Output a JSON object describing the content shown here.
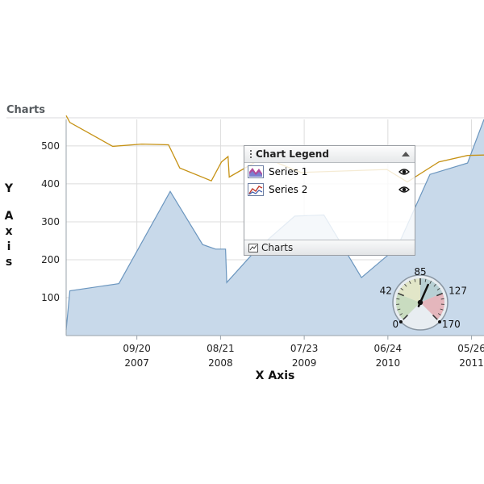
{
  "panel": {
    "title": "Charts"
  },
  "chart_data": {
    "type": "area",
    "xlabel": "X Axis",
    "ylabel": "Y Axis",
    "ylim": [
      0,
      570
    ],
    "yticks": [
      100,
      200,
      300,
      400,
      500
    ],
    "xlim": [
      "2006-12-10",
      "2011-07-15"
    ],
    "xticks": [
      {
        "date": "2007-09-20",
        "top": "09/20",
        "bottom": "2007"
      },
      {
        "date": "2008-08-21",
        "top": "08/21",
        "bottom": "2008"
      },
      {
        "date": "2009-07-23",
        "top": "07/23",
        "bottom": "2009"
      },
      {
        "date": "2010-06-24",
        "top": "06/24",
        "bottom": "2010"
      },
      {
        "date": "2011-05-26",
        "top": "05/26",
        "bottom": "2011"
      }
    ],
    "grid": true,
    "series": [
      {
        "name": "Series 1",
        "type": "area",
        "color": "#6b96bf",
        "fill": "#c8d9ea",
        "points": [
          [
            "2006-12-10",
            15
          ],
          [
            "2006-12-25",
            118
          ],
          [
            "2007-07-10",
            137
          ],
          [
            "2008-02-01",
            380
          ],
          [
            "2008-06-10",
            240
          ],
          [
            "2008-08-01",
            228
          ],
          [
            "2008-09-10",
            228
          ],
          [
            "2008-09-15",
            140
          ],
          [
            "2009-01-10",
            225
          ],
          [
            "2009-06-15",
            315
          ],
          [
            "2009-10-10",
            318
          ],
          [
            "2010-03-10",
            153
          ],
          [
            "2010-08-01",
            233
          ],
          [
            "2010-12-10",
            425
          ],
          [
            "2011-05-10",
            455
          ],
          [
            "2011-07-15",
            570
          ]
        ]
      },
      {
        "name": "Series 2",
        "type": "line",
        "color": "#c69215",
        "points": [
          [
            "2006-12-10",
            580
          ],
          [
            "2006-12-25",
            562
          ],
          [
            "2007-06-15",
            499
          ],
          [
            "2007-10-10",
            505
          ],
          [
            "2008-01-25",
            503
          ],
          [
            "2008-03-10",
            442
          ],
          [
            "2008-07-15",
            408
          ],
          [
            "2008-08-25",
            458
          ],
          [
            "2008-09-20",
            472
          ],
          [
            "2008-09-25",
            418
          ],
          [
            "2009-02-10",
            470
          ],
          [
            "2009-07-10",
            430
          ],
          [
            "2010-06-20",
            438
          ],
          [
            "2010-09-10",
            405
          ],
          [
            "2011-01-15",
            458
          ],
          [
            "2011-05-10",
            475
          ],
          [
            "2011-07-15",
            476
          ]
        ]
      }
    ]
  },
  "legend": {
    "title": "Chart Legend",
    "items": [
      {
        "label": "Series 1",
        "color": "#4f88b4"
      },
      {
        "label": "Series 2",
        "color": "#c69215"
      }
    ],
    "footer": "Charts"
  },
  "gauge": {
    "min": 0,
    "max": 170,
    "value": 100,
    "labels": [
      "0",
      "42",
      "85",
      "127",
      "170"
    ],
    "ranges": [
      {
        "from": 0,
        "to": 42,
        "color": "#c9dcc0"
      },
      {
        "from": 42,
        "to": 85,
        "color": "#e2e6c8"
      },
      {
        "from": 85,
        "to": 127,
        "color": "#b8d0d4"
      },
      {
        "from": 127,
        "to": 170,
        "color": "#e4b6bc"
      }
    ]
  }
}
